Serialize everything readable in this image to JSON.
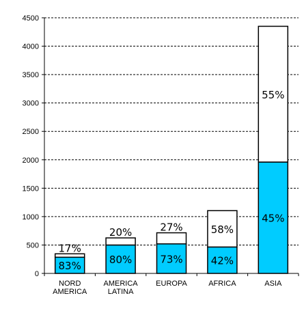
{
  "chart_data": {
    "type": "bar",
    "stacked": true,
    "categories": [
      [
        "NORD",
        "AMERICA"
      ],
      [
        "AMERICA",
        "LATINA"
      ],
      [
        "EUROPA"
      ],
      [
        "AFRICA"
      ],
      [
        "ASIA"
      ]
    ],
    "series": [
      {
        "color": "#00ccff",
        "values": [
          285,
          500,
          520,
          465,
          1960
        ],
        "labels": [
          "83%",
          "80%",
          "73%",
          "42%",
          "45%"
        ]
      },
      {
        "color": "#ffffff",
        "values": [
          60,
          125,
          195,
          640,
          2390
        ],
        "labels": [
          "17%",
          "20%",
          "27%",
          "58%",
          "55%"
        ]
      }
    ],
    "ylim": [
      0,
      4500
    ],
    "ytick_step": 500,
    "yticks": [
      "0",
      "500",
      "1000",
      "1500",
      "2000",
      "2500",
      "3000",
      "3500",
      "4000",
      "4500"
    ],
    "grid": true,
    "grid_style": "dashed",
    "legend": "none",
    "title": "",
    "xlabel": "",
    "ylabel": ""
  }
}
